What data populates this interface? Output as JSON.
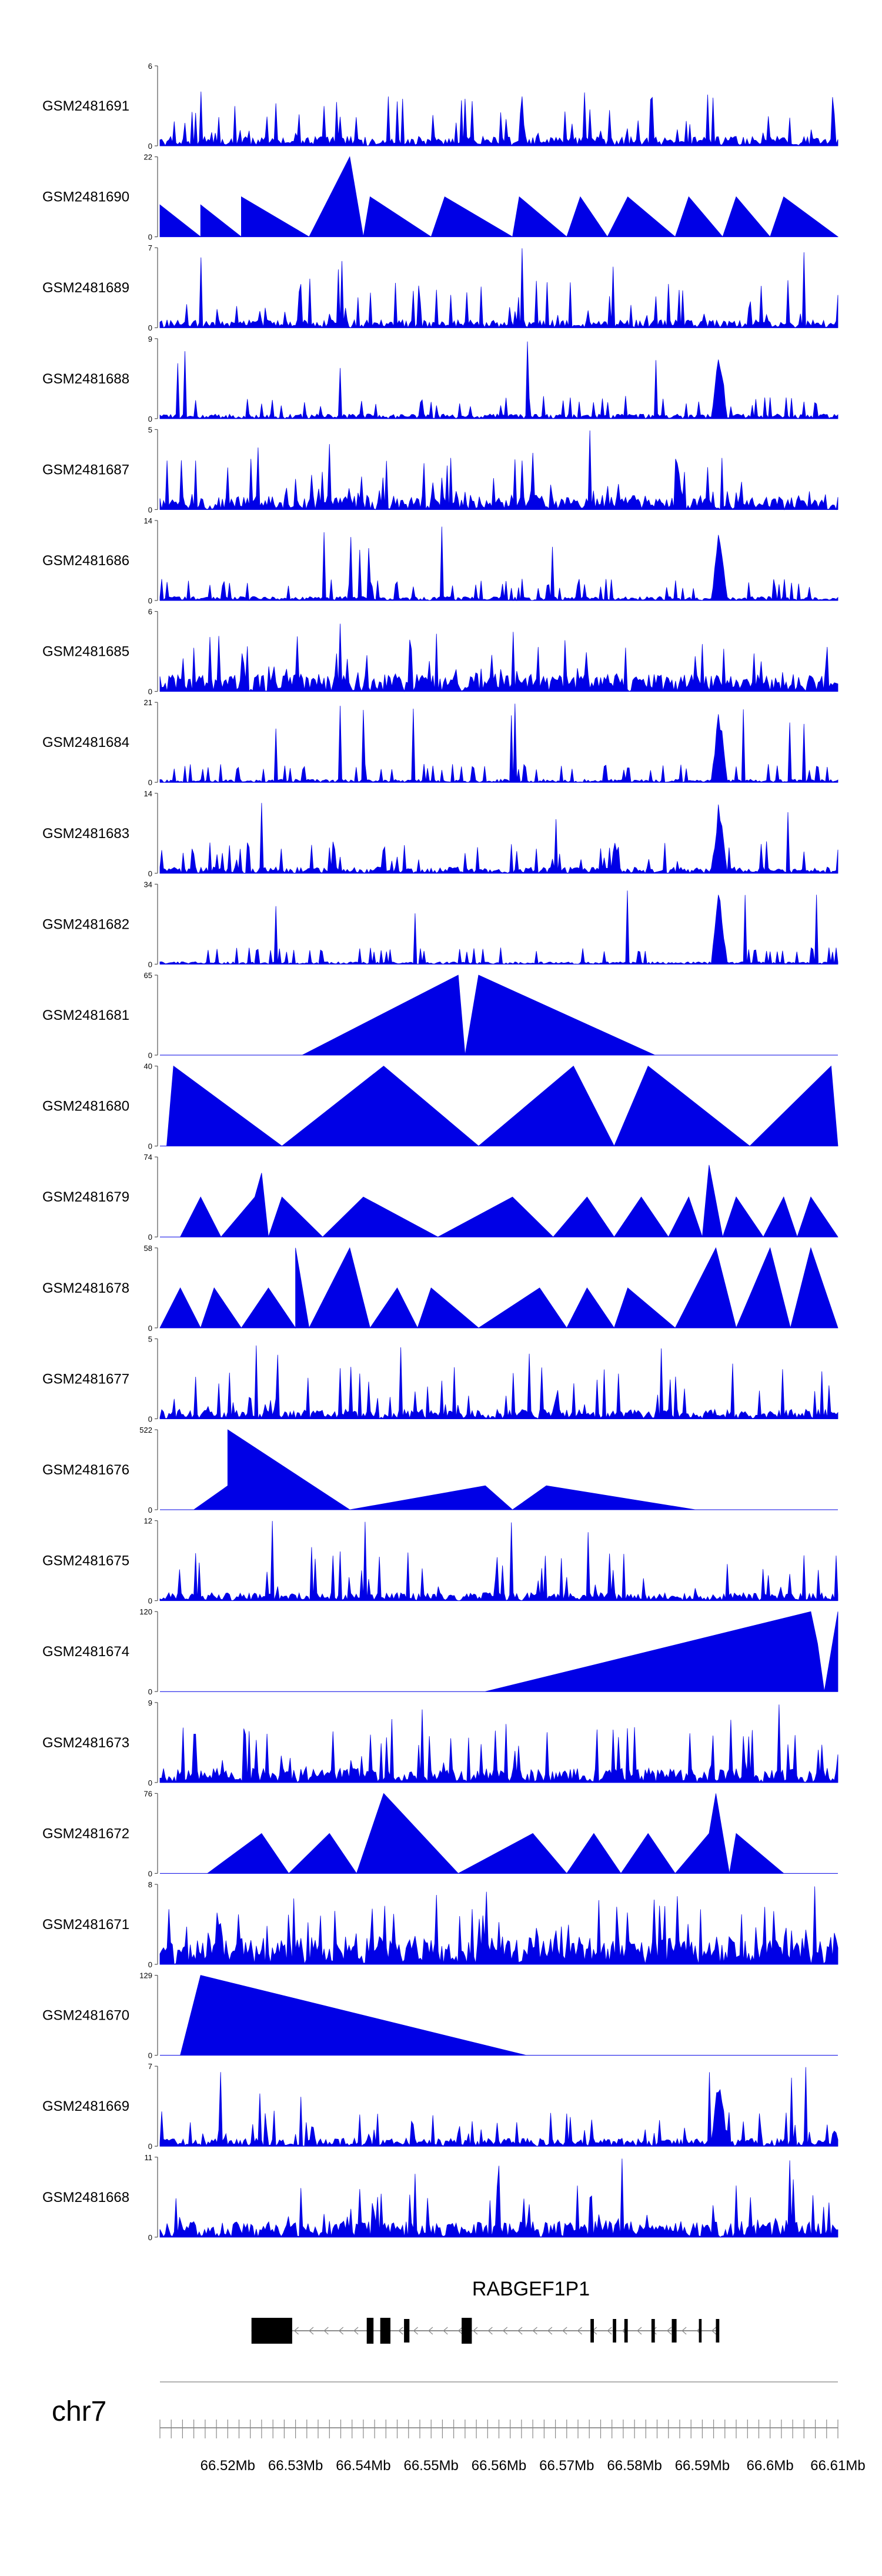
{
  "chart_data": {
    "type": "area",
    "x_range": [
      66.51,
      66.61
    ],
    "x_unit": "Mb",
    "tracks": [
      {
        "name": "GSM2481691",
        "ymax": "6"
      },
      {
        "name": "GSM2481690",
        "ymax": "22"
      },
      {
        "name": "GSM2481689",
        "ymax": "7"
      },
      {
        "name": "GSM2481688",
        "ymax": "9"
      },
      {
        "name": "GSM2481687",
        "ymax": "5"
      },
      {
        "name": "GSM2481686",
        "ymax": "14"
      },
      {
        "name": "GSM2481685",
        "ymax": "6"
      },
      {
        "name": "GSM2481684",
        "ymax": "21"
      },
      {
        "name": "GSM2481683",
        "ymax": "14"
      },
      {
        "name": "GSM2481682",
        "ymax": "34"
      },
      {
        "name": "GSM2481681",
        "ymax": "65"
      },
      {
        "name": "GSM2481680",
        "ymax": "40"
      },
      {
        "name": "GSM2481679",
        "ymax": "74"
      },
      {
        "name": "GSM2481678",
        "ymax": "58"
      },
      {
        "name": "GSM2481677",
        "ymax": "5"
      },
      {
        "name": "GSM2481676",
        "ymax": "522"
      },
      {
        "name": "GSM2481675",
        "ymax": "12"
      },
      {
        "name": "GSM2481674",
        "ymax": "120"
      },
      {
        "name": "GSM2481673",
        "ymax": "9"
      },
      {
        "name": "GSM2481672",
        "ymax": "76"
      },
      {
        "name": "GSM2481671",
        "ymax": "8"
      },
      {
        "name": "GSM2481670",
        "ymax": "129"
      },
      {
        "name": "GSM2481669",
        "ymax": "7"
      },
      {
        "name": "GSM2481668",
        "ymax": "11"
      }
    ],
    "y_min_label": "0",
    "gene": {
      "name": "RABGEF1P1",
      "start": 66.5235,
      "end": 66.5925,
      "strand": "-",
      "exons": [
        [
          66.5235,
          66.5295
        ],
        [
          66.5405,
          66.5415
        ],
        [
          66.5425,
          66.544
        ],
        [
          66.546,
          66.5468
        ],
        [
          66.5545,
          66.556
        ],
        [
          66.5735,
          66.574
        ],
        [
          66.5768,
          66.5773
        ],
        [
          66.5785,
          66.579
        ],
        [
          66.5825,
          66.583
        ],
        [
          66.5855,
          66.5862
        ],
        [
          66.5895,
          66.5899
        ],
        [
          66.592,
          66.5925
        ]
      ]
    },
    "chromosome": "chr7",
    "axis_ticks": [
      "66.52Mb",
      "66.53Mb",
      "66.54Mb",
      "66.55Mb",
      "66.56Mb",
      "66.57Mb",
      "66.58Mb",
      "66.59Mb",
      "66.6Mb",
      "66.61Mb"
    ],
    "colors": {
      "signal": "#0000e6",
      "axis": "#555555",
      "text": "#000000"
    }
  }
}
